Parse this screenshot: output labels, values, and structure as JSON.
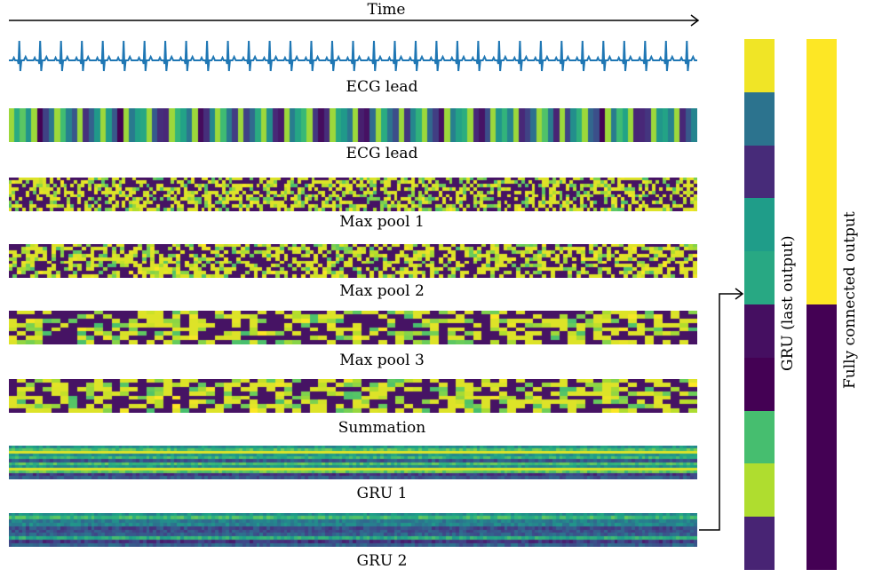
{
  "time_label": "Time",
  "rows": [
    {
      "id": "ecg-signal",
      "kind": "signal",
      "label": "ECG lead"
    },
    {
      "id": "ecg-heatmap",
      "kind": "heatmap",
      "label": "ECG lead",
      "cells_x": 120,
      "cells_y": 1
    },
    {
      "id": "max-pool-1",
      "kind": "heatmap",
      "label": "Max pool 1",
      "cells_x": 200,
      "cells_y": 10
    },
    {
      "id": "max-pool-2",
      "kind": "heatmap",
      "label": "Max pool 2",
      "cells_x": 160,
      "cells_y": 10
    },
    {
      "id": "max-pool-3",
      "kind": "heatmap",
      "label": "Max pool 3",
      "cells_x": 80,
      "cells_y": 8
    },
    {
      "id": "summation",
      "kind": "heatmap",
      "label": "Summation",
      "cells_x": 80,
      "cells_y": 8
    },
    {
      "id": "gru-1",
      "kind": "heatmap-smooth",
      "label": "GRU 1",
      "cells_x": 200,
      "cells_y": 12
    },
    {
      "id": "gru-2",
      "kind": "heatmap-smooth",
      "label": "GRU 2",
      "cells_x": 200,
      "cells_y": 10
    }
  ],
  "gru_last_output": {
    "label": "GRU (last output)",
    "values": [
      0.98,
      0.38,
      0.12,
      0.55,
      0.6,
      0.04,
      0.0,
      0.7,
      0.88,
      0.1
    ]
  },
  "fc_output": {
    "label": "Fully connected output",
    "values": [
      1.0,
      0.0
    ]
  },
  "colormap": [
    "#440154",
    "#482878",
    "#3e4989",
    "#31688e",
    "#26828e",
    "#1f9e89",
    "#35b779",
    "#6ece58",
    "#b5de2b",
    "#fde725"
  ]
}
